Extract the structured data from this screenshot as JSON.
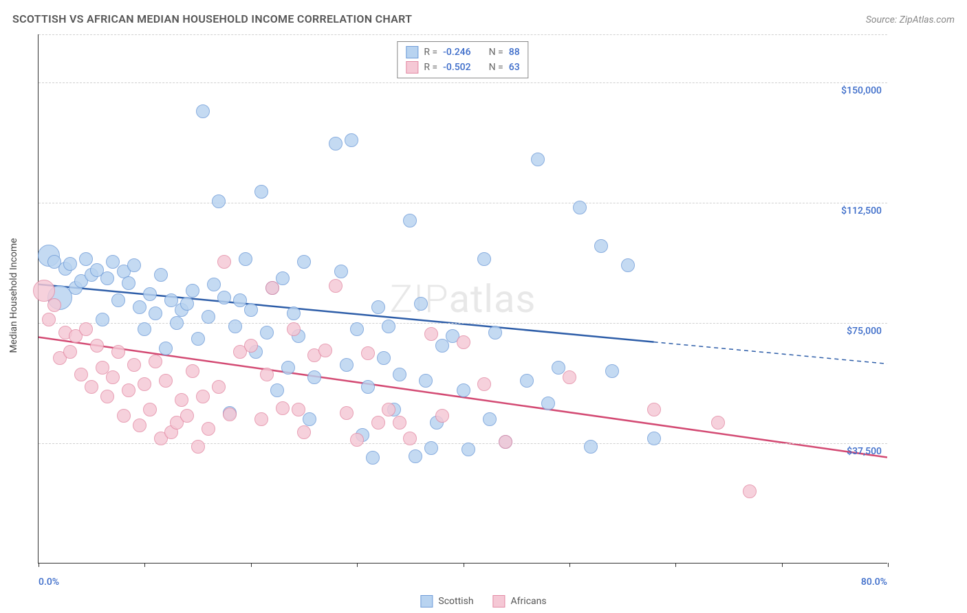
{
  "header": {
    "title": "SCOTTISH VS AFRICAN MEDIAN HOUSEHOLD INCOME CORRELATION CHART",
    "source": "Source: ZipAtlas.com"
  },
  "chart": {
    "type": "scatter",
    "ylabel": "Median Household Income",
    "watermark": "ZIPatlas",
    "x_axis": {
      "min": 0,
      "max": 80,
      "tick_positions": [
        0,
        10,
        20,
        30,
        40,
        50,
        60,
        70,
        80
      ],
      "labels": {
        "start": "0.0%",
        "end": "80.0%"
      }
    },
    "y_axis": {
      "min": 0,
      "max": 165000,
      "gridline_values": [
        37500,
        75000,
        112500,
        150000
      ],
      "gridline_labels": [
        "$37,500",
        "$75,000",
        "$112,500",
        "$150,000"
      ]
    },
    "series": [
      {
        "name": "Scottish",
        "fill": "#b8d3f0",
        "stroke": "#6f9cd8",
        "line_color": "#2d5da8",
        "R": "-0.246",
        "N": "88",
        "marker_radius": 10,
        "trend": {
          "x1": 0,
          "y1": 87000,
          "x2_solid": 58,
          "y2_solid": 69000,
          "x2_dash": 80,
          "y2_dash": 62200
        },
        "points": [
          {
            "x": 1,
            "y": 96000,
            "r": 16
          },
          {
            "x": 1.5,
            "y": 94000
          },
          {
            "x": 2,
            "y": 83000,
            "r": 18
          },
          {
            "x": 2.5,
            "y": 92000
          },
          {
            "x": 3,
            "y": 93500
          },
          {
            "x": 3.5,
            "y": 86000
          },
          {
            "x": 4,
            "y": 88000
          },
          {
            "x": 4.5,
            "y": 95000
          },
          {
            "x": 5,
            "y": 90000
          },
          {
            "x": 5.5,
            "y": 91500
          },
          {
            "x": 6,
            "y": 76000
          },
          {
            "x": 6.5,
            "y": 89000
          },
          {
            "x": 7,
            "y": 94000
          },
          {
            "x": 7.5,
            "y": 82000
          },
          {
            "x": 8,
            "y": 91000
          },
          {
            "x": 8.5,
            "y": 87500
          },
          {
            "x": 9,
            "y": 93000
          },
          {
            "x": 9.5,
            "y": 80000
          },
          {
            "x": 10,
            "y": 73000
          },
          {
            "x": 10.5,
            "y": 84000
          },
          {
            "x": 11,
            "y": 78000
          },
          {
            "x": 11.5,
            "y": 90000
          },
          {
            "x": 12,
            "y": 67000
          },
          {
            "x": 12.5,
            "y": 82000
          },
          {
            "x": 13,
            "y": 75000
          },
          {
            "x": 13.5,
            "y": 79000
          },
          {
            "x": 14,
            "y": 81000
          },
          {
            "x": 14.5,
            "y": 85000
          },
          {
            "x": 15,
            "y": 70000
          },
          {
            "x": 15.5,
            "y": 141000
          },
          {
            "x": 16,
            "y": 77000
          },
          {
            "x": 16.5,
            "y": 87000
          },
          {
            "x": 17,
            "y": 113000
          },
          {
            "x": 17.5,
            "y": 83000
          },
          {
            "x": 18,
            "y": 47000
          },
          {
            "x": 18.5,
            "y": 74000
          },
          {
            "x": 19,
            "y": 82000
          },
          {
            "x": 19.5,
            "y": 95000
          },
          {
            "x": 20,
            "y": 79000
          },
          {
            "x": 20.5,
            "y": 66000
          },
          {
            "x": 21,
            "y": 116000
          },
          {
            "x": 21.5,
            "y": 72000
          },
          {
            "x": 22,
            "y": 86000
          },
          {
            "x": 22.5,
            "y": 54000
          },
          {
            "x": 23,
            "y": 89000
          },
          {
            "x": 23.5,
            "y": 61000
          },
          {
            "x": 24,
            "y": 78000
          },
          {
            "x": 24.5,
            "y": 71000
          },
          {
            "x": 25,
            "y": 94000
          },
          {
            "x": 25.5,
            "y": 45000
          },
          {
            "x": 26,
            "y": 58000
          },
          {
            "x": 28,
            "y": 131000
          },
          {
            "x": 28.5,
            "y": 91000
          },
          {
            "x": 29,
            "y": 62000
          },
          {
            "x": 29.5,
            "y": 132000
          },
          {
            "x": 30,
            "y": 73000
          },
          {
            "x": 30.5,
            "y": 40000
          },
          {
            "x": 31,
            "y": 55000
          },
          {
            "x": 31.5,
            "y": 33000
          },
          {
            "x": 32,
            "y": 80000
          },
          {
            "x": 32.5,
            "y": 64000
          },
          {
            "x": 33,
            "y": 74000
          },
          {
            "x": 33.5,
            "y": 48000
          },
          {
            "x": 34,
            "y": 59000
          },
          {
            "x": 35,
            "y": 107000
          },
          {
            "x": 35.5,
            "y": 33500
          },
          {
            "x": 36,
            "y": 81000
          },
          {
            "x": 36.5,
            "y": 57000
          },
          {
            "x": 37,
            "y": 36000
          },
          {
            "x": 37.5,
            "y": 44000
          },
          {
            "x": 38,
            "y": 68000
          },
          {
            "x": 39,
            "y": 71000
          },
          {
            "x": 40,
            "y": 54000
          },
          {
            "x": 40.5,
            "y": 35500
          },
          {
            "x": 42,
            "y": 95000
          },
          {
            "x": 42.5,
            "y": 45000
          },
          {
            "x": 43,
            "y": 72000
          },
          {
            "x": 44,
            "y": 38000
          },
          {
            "x": 46,
            "y": 57000
          },
          {
            "x": 47,
            "y": 126000
          },
          {
            "x": 48,
            "y": 50000
          },
          {
            "x": 49,
            "y": 61000
          },
          {
            "x": 51,
            "y": 111000
          },
          {
            "x": 52,
            "y": 36500
          },
          {
            "x": 53,
            "y": 99000
          },
          {
            "x": 54,
            "y": 60000
          },
          {
            "x": 55.5,
            "y": 93000
          },
          {
            "x": 58,
            "y": 39000
          }
        ]
      },
      {
        "name": "Africans",
        "fill": "#f5c8d5",
        "stroke": "#e38aa4",
        "line_color": "#d34a73",
        "R": "-0.502",
        "N": "63",
        "marker_radius": 10,
        "trend": {
          "x1": 0,
          "y1": 70500,
          "x2_solid": 80,
          "y2_solid": 33000,
          "x2_dash": 80,
          "y2_dash": 33000
        },
        "points": [
          {
            "x": 0.5,
            "y": 85000,
            "r": 16
          },
          {
            "x": 1,
            "y": 76000
          },
          {
            "x": 1.5,
            "y": 80500
          },
          {
            "x": 2,
            "y": 64000
          },
          {
            "x": 2.5,
            "y": 72000
          },
          {
            "x": 3,
            "y": 66000
          },
          {
            "x": 3.5,
            "y": 71000
          },
          {
            "x": 4,
            "y": 59000
          },
          {
            "x": 4.5,
            "y": 73000
          },
          {
            "x": 5,
            "y": 55000
          },
          {
            "x": 5.5,
            "y": 68000
          },
          {
            "x": 6,
            "y": 61000
          },
          {
            "x": 6.5,
            "y": 52000
          },
          {
            "x": 7,
            "y": 58000
          },
          {
            "x": 7.5,
            "y": 66000
          },
          {
            "x": 8,
            "y": 46000
          },
          {
            "x": 8.5,
            "y": 54000
          },
          {
            "x": 9,
            "y": 62000
          },
          {
            "x": 9.5,
            "y": 43000
          },
          {
            "x": 10,
            "y": 56000
          },
          {
            "x": 10.5,
            "y": 48000
          },
          {
            "x": 11,
            "y": 63000
          },
          {
            "x": 11.5,
            "y": 39000
          },
          {
            "x": 12,
            "y": 57000
          },
          {
            "x": 12.5,
            "y": 41000
          },
          {
            "x": 13,
            "y": 44000
          },
          {
            "x": 13.5,
            "y": 51000
          },
          {
            "x": 14,
            "y": 46000
          },
          {
            "x": 14.5,
            "y": 60000
          },
          {
            "x": 15,
            "y": 36500
          },
          {
            "x": 15.5,
            "y": 52000
          },
          {
            "x": 16,
            "y": 42000
          },
          {
            "x": 17,
            "y": 55000
          },
          {
            "x": 17.5,
            "y": 94000
          },
          {
            "x": 18,
            "y": 46500
          },
          {
            "x": 19,
            "y": 66000
          },
          {
            "x": 20,
            "y": 68000
          },
          {
            "x": 21,
            "y": 45000
          },
          {
            "x": 21.5,
            "y": 59000
          },
          {
            "x": 22,
            "y": 86000
          },
          {
            "x": 23,
            "y": 48500
          },
          {
            "x": 24,
            "y": 73000
          },
          {
            "x": 24.5,
            "y": 48000
          },
          {
            "x": 25,
            "y": 41000
          },
          {
            "x": 26,
            "y": 65000
          },
          {
            "x": 27,
            "y": 66500
          },
          {
            "x": 28,
            "y": 86500
          },
          {
            "x": 29,
            "y": 47000
          },
          {
            "x": 30,
            "y": 38500
          },
          {
            "x": 31,
            "y": 65500
          },
          {
            "x": 32,
            "y": 44000
          },
          {
            "x": 33,
            "y": 48000
          },
          {
            "x": 34,
            "y": 44000
          },
          {
            "x": 35,
            "y": 39000
          },
          {
            "x": 37,
            "y": 71500
          },
          {
            "x": 38,
            "y": 46000
          },
          {
            "x": 40,
            "y": 69000
          },
          {
            "x": 42,
            "y": 56000
          },
          {
            "x": 44,
            "y": 38000
          },
          {
            "x": 50,
            "y": 58000
          },
          {
            "x": 58,
            "y": 48000
          },
          {
            "x": 64,
            "y": 44000
          },
          {
            "x": 67,
            "y": 22500
          }
        ]
      }
    ],
    "legend_labels": {
      "R": "R =",
      "N": "N ="
    },
    "bottom_legend": [
      "Scottish",
      "Africans"
    ]
  }
}
